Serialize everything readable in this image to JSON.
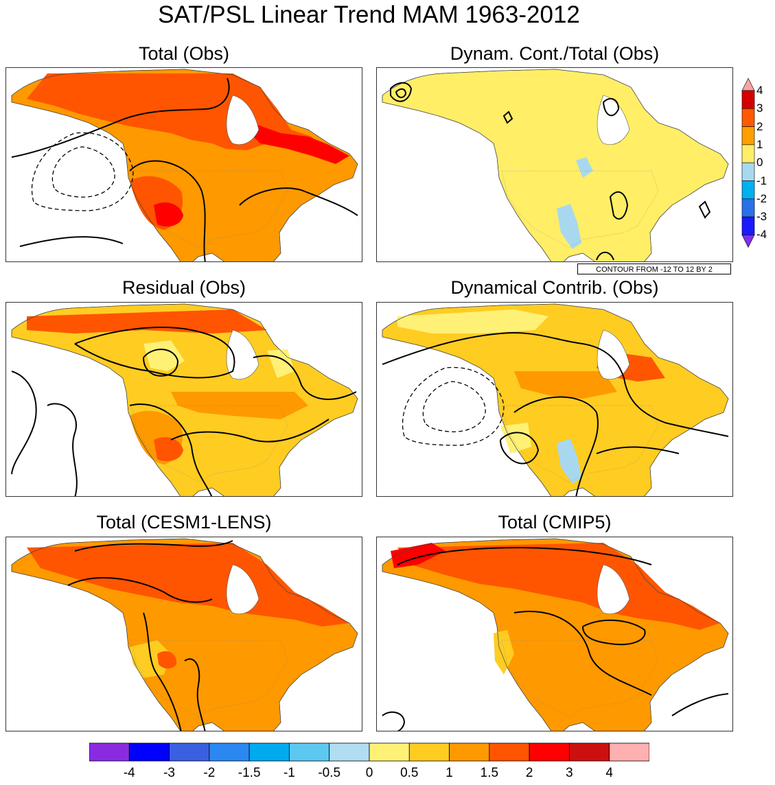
{
  "title": "SAT/PSL Linear Trend MAM 1963-2012",
  "panels": [
    {
      "title": "Total (Obs)",
      "style": "total_obs"
    },
    {
      "title": "Dynam. Cont./Total (Obs)",
      "style": "ratio"
    },
    {
      "title": "Residual (Obs)",
      "style": "residual"
    },
    {
      "title": "Dynamical Contrib. (Obs)",
      "style": "dynamic"
    },
    {
      "title": "Total (CESM1-LENS)",
      "style": "cesm"
    },
    {
      "title": "Total (CMIP5)",
      "style": "cmip5"
    }
  ],
  "contour_note": "CONTOUR FROM -12 TO 12 BY 2",
  "ratio_colorbar": {
    "labels": [
      "4",
      "3",
      "2",
      "1",
      "0",
      "-1",
      "-2",
      "-3",
      "-4"
    ],
    "colors": [
      "#f5a3a3",
      "#d40000",
      "#ff5a00",
      "#ff9e00",
      "#ffee66",
      "#a8d8f0",
      "#00b0f0",
      "#2a70e8",
      "#1a1aff",
      "#8030e8"
    ]
  },
  "trend_colorbar": {
    "labels": [
      "-4",
      "-3",
      "-2",
      "-1.5",
      "-1",
      "-0.5",
      "0",
      "0.5",
      "1",
      "1.5",
      "2",
      "3",
      "4"
    ],
    "colors": [
      "#8a2be2",
      "#0000ff",
      "#3a5fe0",
      "#2b88f0",
      "#00aaf0",
      "#5cc8f0",
      "#b0ddf2",
      "#fff176",
      "#ffcc22",
      "#ff9900",
      "#ff5500",
      "#ff0000",
      "#cc1010",
      "#ffb0b0"
    ]
  }
}
